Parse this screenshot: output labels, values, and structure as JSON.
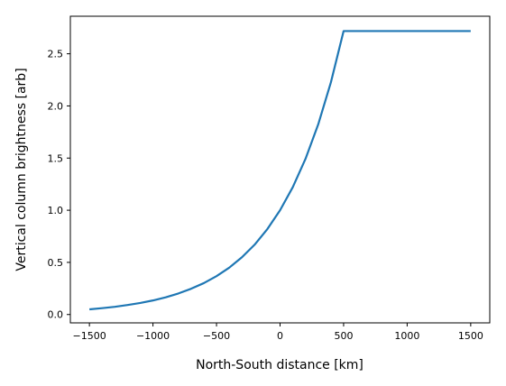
{
  "chart_data": {
    "type": "line",
    "title": "",
    "xlabel": "North-South distance [km]",
    "ylabel": "Vertical column brightness [arb]",
    "xlim": [
      -1650,
      1650
    ],
    "ylim": [
      -0.08,
      2.86
    ],
    "xticks": [
      -1500,
      -1000,
      -500,
      0,
      500,
      1000,
      1500
    ],
    "xtick_labels": [
      "−1500",
      "−1000",
      "−500",
      "0",
      "500",
      "1000",
      "1500"
    ],
    "yticks": [
      0.0,
      0.5,
      1.0,
      1.5,
      2.0,
      2.5
    ],
    "ytick_labels": [
      "0.0",
      "0.5",
      "1.0",
      "1.5",
      "2.0",
      "2.5"
    ],
    "grid": false,
    "legend": "none",
    "series": [
      {
        "color": "#1f77b4",
        "x": [
          -1500,
          -1400,
          -1300,
          -1200,
          -1100,
          -1000,
          -900,
          -800,
          -700,
          -600,
          -500,
          -400,
          -300,
          -200,
          -100,
          0,
          100,
          200,
          300,
          400,
          500,
          600,
          700,
          800,
          900,
          1000,
          1100,
          1200,
          1300,
          1400,
          1500
        ],
        "y": [
          0.05,
          0.061,
          0.074,
          0.091,
          0.111,
          0.135,
          0.165,
          0.202,
          0.247,
          0.301,
          0.368,
          0.449,
          0.549,
          0.67,
          0.819,
          1.0,
          1.221,
          1.492,
          1.822,
          2.226,
          2.718,
          2.718,
          2.718,
          2.718,
          2.718,
          2.718,
          2.718,
          2.718,
          2.718,
          2.718,
          2.718
        ]
      }
    ]
  }
}
